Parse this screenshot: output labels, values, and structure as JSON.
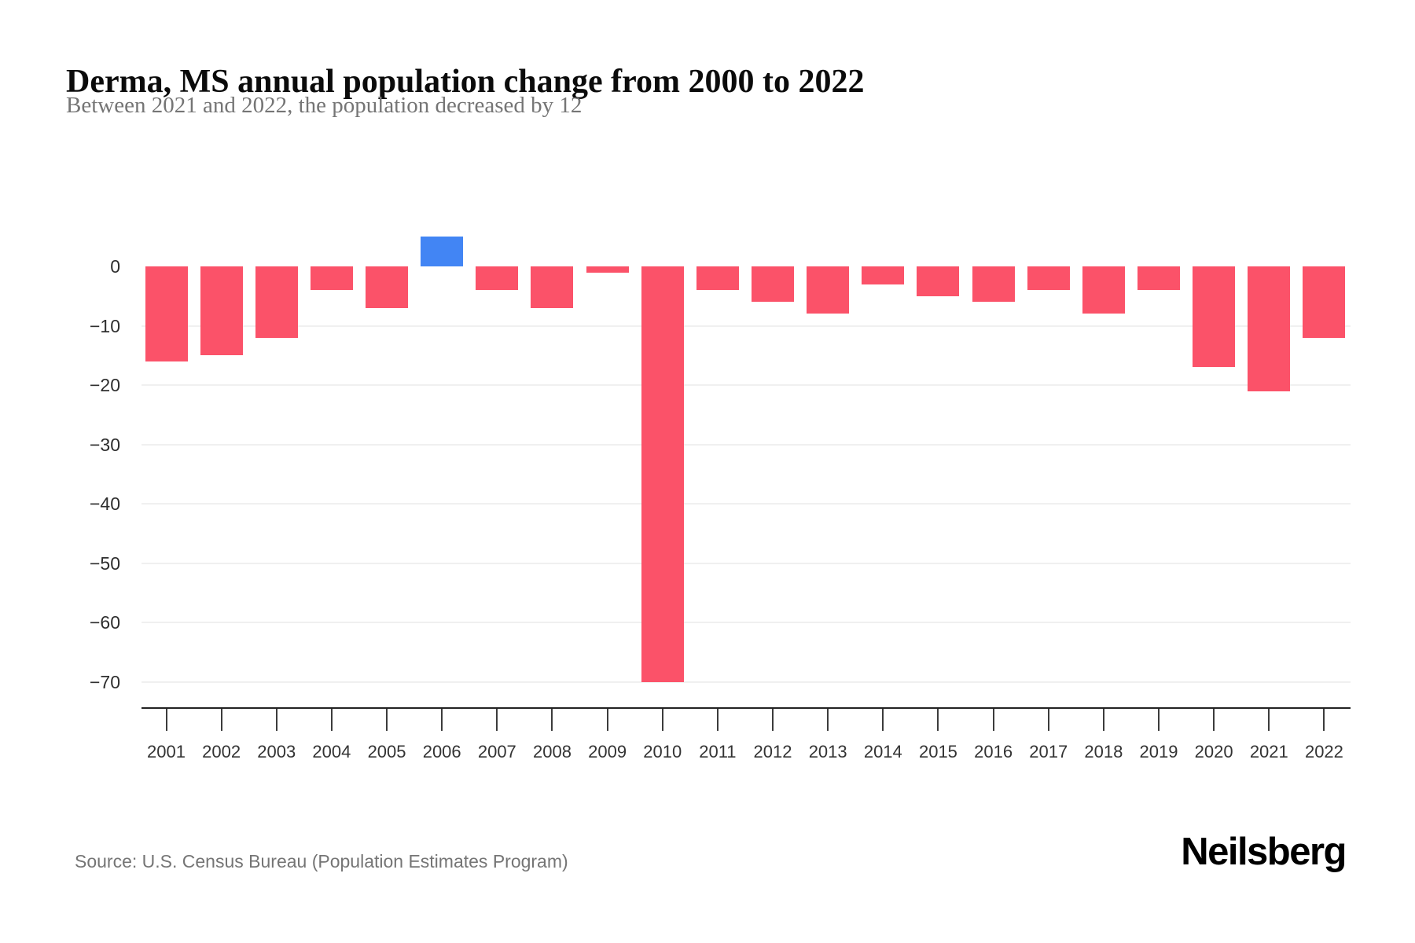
{
  "header": {
    "title": "Derma, MS annual population change from 2000 to 2022",
    "subtitle": "Between 2021 and 2022, the population decreased by 12"
  },
  "footer": {
    "source": "Source: U.S. Census Bureau (Population Estimates Program)",
    "brand": "Neilsberg"
  },
  "chart_data": {
    "type": "bar",
    "title": "Derma, MS annual population change from 2000 to 2022",
    "subtitle": "Between 2021 and 2022, the population decreased by 12",
    "xlabel": "",
    "ylabel": "",
    "categories": [
      "2001",
      "2002",
      "2003",
      "2004",
      "2005",
      "2006",
      "2007",
      "2008",
      "2009",
      "2010",
      "2011",
      "2012",
      "2013",
      "2014",
      "2015",
      "2016",
      "2017",
      "2018",
      "2019",
      "2020",
      "2021",
      "2022"
    ],
    "values": [
      -16,
      -15,
      -12,
      -4,
      -7,
      5,
      -4,
      -7,
      -1,
      -70,
      -4,
      -6,
      -8,
      -3,
      -5,
      -6,
      -4,
      -8,
      -4,
      -17,
      -21,
      -12
    ],
    "yticks": [
      0,
      -10,
      -20,
      -30,
      -40,
      -50,
      -60,
      -70
    ],
    "ylim": [
      -74,
      12
    ],
    "grid": "horizontal-light",
    "legend": "none",
    "colors": {
      "negative_bar": "#FB5269",
      "positive_bar": "#4285F4",
      "gridline": "#F0F0F0",
      "axis_line": "#222222",
      "tick_label": "#333333",
      "subtitle_text": "#757575"
    }
  }
}
